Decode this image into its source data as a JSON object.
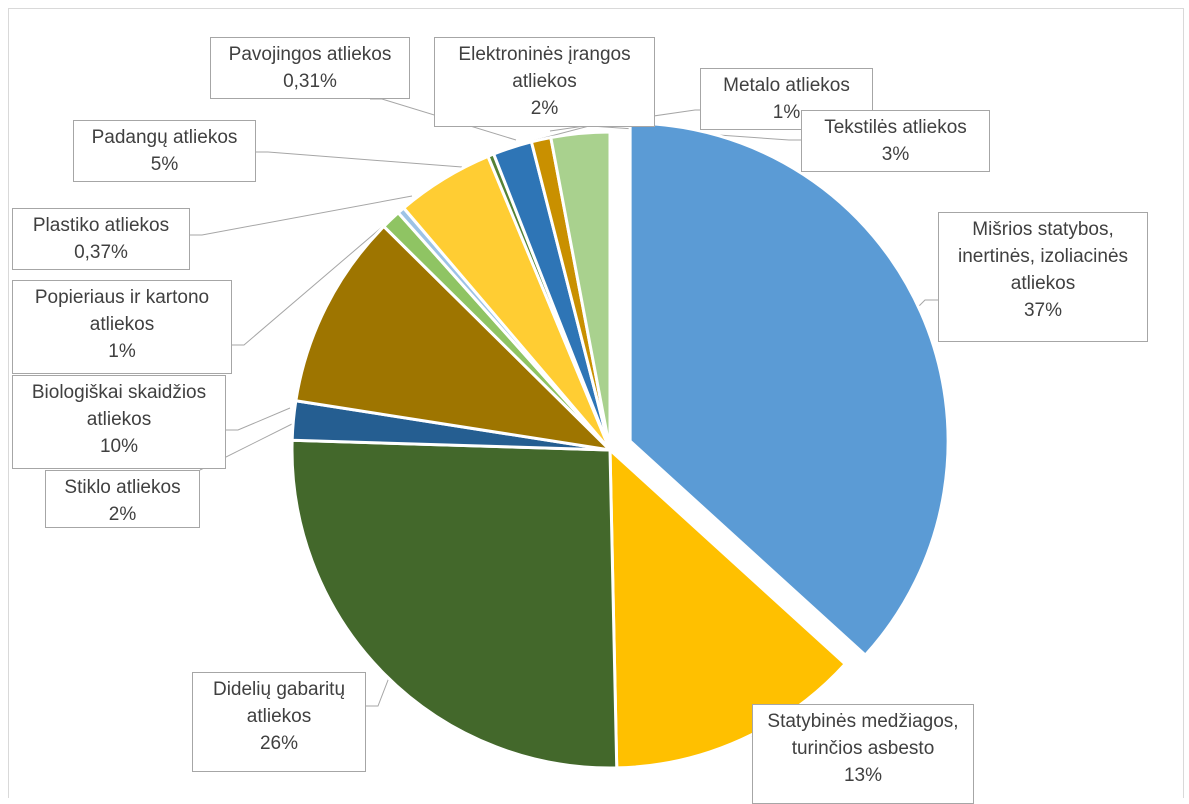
{
  "chart_data": {
    "type": "pie",
    "title": "",
    "slices": [
      {
        "label": "Mišrios statybos, inertinės, izoliacinės atliekos",
        "label_lines": [
          "Mišrios statybos,",
          "inertinės, izoliacinės",
          "atliekos"
        ],
        "value": 37,
        "value_label": "37%",
        "color": "#5b9bd5",
        "exploded": true
      },
      {
        "label": "Statybinės medžiagos, turinčios asbesto",
        "label_lines": [
          "Statybinės medžiagos,",
          "turinčios asbesto"
        ],
        "value": 13,
        "value_label": "13%",
        "color": "#ffc000"
      },
      {
        "label": "Didelių gabaritų atliekos",
        "label_lines": [
          "Didelių gabaritų",
          "atliekos"
        ],
        "value": 26,
        "value_label": "26%",
        "color": "#43682b"
      },
      {
        "label": "Stiklo atliekos",
        "label_lines": [
          "Stiklo atliekos"
        ],
        "value": 2,
        "value_label": "2%",
        "color": "#255e91"
      },
      {
        "label": "Biologiškai skaidžios atliekos",
        "label_lines": [
          "Biologiškai skaidžios",
          "atliekos"
        ],
        "value": 10,
        "value_label": "10%",
        "color": "#9e7500"
      },
      {
        "label": "Popieriaus ir kartono atliekos",
        "label_lines": [
          "Popieriaus ir kartono",
          "atliekos"
        ],
        "value": 1,
        "value_label": "1%",
        "color": "#8fc463"
      },
      {
        "label": "Plastiko atliekos",
        "label_lines": [
          "Plastiko atliekos"
        ],
        "value": 0.37,
        "value_label": "0,37%",
        "color": "#9dc3e6"
      },
      {
        "label": "Padangų atliekos",
        "label_lines": [
          "Padangų atliekos"
        ],
        "value": 5,
        "value_label": "5%",
        "color": "#ffcd33"
      },
      {
        "label": "Pavojingos atliekos",
        "label_lines": [
          "Pavojingos atliekos"
        ],
        "value": 0.31,
        "value_label": "0,31%",
        "color": "#548235"
      },
      {
        "label": "Elektroninės įrangos atliekos",
        "label_lines": [
          "Elektroninės įrangos",
          "atliekos"
        ],
        "value": 2,
        "value_label": "2%",
        "color": "#2e75b6"
      },
      {
        "label": "Metalo atliekos",
        "label_lines": [
          "Metalo atliekos"
        ],
        "value": 1,
        "value_label": "1%",
        "color": "#c99000"
      },
      {
        "label": "Tekstilės atliekos",
        "label_lines": [
          "Tekstilės atliekos"
        ],
        "value": 3,
        "value_label": "3%",
        "color": "#a9d18e"
      }
    ]
  }
}
